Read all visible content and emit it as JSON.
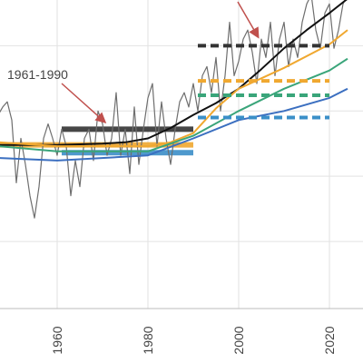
{
  "chart_data": {
    "type": "line",
    "annotation": "1961-1990",
    "xlim": [
      1947.4,
      2027.4
    ],
    "xticks": [
      1960,
      1980,
      2000,
      2020
    ],
    "ylim": [
      -1.5,
      0.85
    ],
    "ygrid": [
      -1.0,
      -0.5,
      0,
      0.5
    ],
    "grid": true,
    "series": [
      {
        "color": "#6e6e6e",
        "width": 1.2,
        "x": [
          1947,
          1948,
          1949,
          1950,
          1951,
          1952,
          1953,
          1954,
          1955,
          1956,
          1957,
          1958,
          1959,
          1960,
          1961,
          1962,
          1963,
          1964,
          1965,
          1966,
          1967,
          1968,
          1969,
          1970,
          1971,
          1972,
          1973,
          1974,
          1975,
          1976,
          1977,
          1978,
          1979,
          1980,
          1981,
          1982,
          1983,
          1984,
          1985,
          1986,
          1987,
          1988,
          1989,
          1990,
          1991,
          1992,
          1993,
          1994,
          1995,
          1996,
          1997,
          1998,
          1999,
          2000,
          2001,
          2002,
          2003,
          2004,
          2005,
          2006,
          2007,
          2008,
          2009,
          2010,
          2011,
          2012,
          2013,
          2014,
          2015,
          2016,
          2017,
          2018,
          2019,
          2020,
          2021,
          2022,
          2023,
          2024
        ],
        "values": [
          -0.03,
          0.03,
          0.07,
          -0.07,
          -0.55,
          -0.21,
          -0.41,
          -0.65,
          -0.82,
          -0.58,
          -0.21,
          -0.1,
          -0.21,
          -0.34,
          -0.14,
          -0.27,
          -0.65,
          -0.38,
          -0.58,
          -0.21,
          -0.14,
          -0.38,
          0,
          -0.1,
          -0.34,
          -0.21,
          0.14,
          -0.34,
          -0.14,
          -0.48,
          0.03,
          -0.41,
          -0.14,
          0.1,
          0.21,
          -0.27,
          0.07,
          -0.21,
          -0.41,
          -0.14,
          0.07,
          0.14,
          0.03,
          0.21,
          0,
          0.27,
          0.34,
          0.14,
          0.41,
          0,
          0.27,
          0.68,
          0.27,
          0.38,
          0.55,
          0.62,
          0.45,
          0.21,
          0.55,
          0.41,
          0.68,
          0.27,
          0.55,
          0.68,
          0.34,
          0.55,
          0.41,
          0.68,
          0.82,
          0.89,
          0.62,
          0.48,
          0.75,
          0.82,
          0.48,
          0.62,
          0.82,
          0.89
        ]
      },
      {
        "color": "#111111",
        "width": 2,
        "x": [
          1947,
          1960,
          1970,
          1975,
          1980,
          1985,
          1990,
          1995,
          2000,
          2005,
          2010,
          2015,
          2020,
          2024
        ],
        "values": [
          -0.26,
          -0.26,
          -0.25,
          -0.24,
          -0.21,
          -0.13,
          -0.03,
          0.06,
          0.17,
          0.32,
          0.48,
          0.62,
          0.75,
          0.86
        ]
      },
      {
        "color": "#f0a830",
        "width": 2,
        "x": [
          1947,
          1960,
          1980,
          1985,
          1990,
          1995,
          2000,
          2010,
          2020,
          2024
        ],
        "values": [
          -0.24,
          -0.27,
          -0.27,
          -0.24,
          -0.17,
          0.02,
          0.17,
          0.33,
          0.51,
          0.62
        ]
      },
      {
        "color": "#3aa57a",
        "width": 2,
        "x": [
          1947,
          1960,
          1980,
          1990,
          2000,
          2010,
          2020,
          2024
        ],
        "values": [
          -0.27,
          -0.31,
          -0.31,
          -0.19,
          0,
          0.17,
          0.31,
          0.4
        ]
      },
      {
        "color": "#3b6fc0",
        "width": 2,
        "x": [
          1947,
          1960,
          1980,
          1990,
          2000,
          2010,
          2020,
          2024
        ],
        "values": [
          -0.36,
          -0.38,
          -0.34,
          -0.21,
          -0.07,
          0,
          0.1,
          0.17
        ]
      }
    ],
    "levels": [
      {
        "color": "#333333",
        "x": [
          1961,
          1990
        ],
        "value": -0.14,
        "style": "solid"
      },
      {
        "color": "#f0a830",
        "x": [
          1947,
          1990
        ],
        "value": -0.26,
        "style": "solid"
      },
      {
        "color": "#3b8fc8",
        "x": [
          1961,
          1990
        ],
        "value": -0.32,
        "style": "solid"
      },
      {
        "color": "#333333",
        "x": [
          1991,
          2020
        ],
        "value": 0.5,
        "style": "dashed"
      },
      {
        "color": "#f0a830",
        "x": [
          1991,
          2020
        ],
        "value": 0.23,
        "style": "dashed"
      },
      {
        "color": "#3aa57a",
        "x": [
          1991,
          2020
        ],
        "value": 0.12,
        "style": "dashed"
      },
      {
        "color": "#3b8fc8",
        "x": [
          1991,
          2020
        ],
        "value": -0.05,
        "style": "dashed"
      }
    ]
  }
}
